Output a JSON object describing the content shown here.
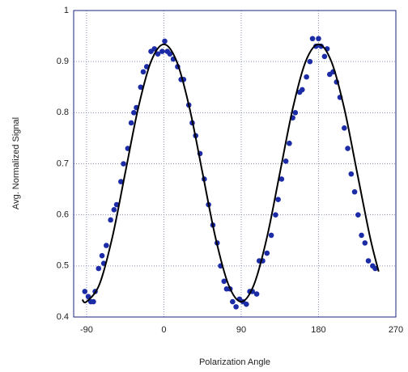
{
  "chart_data": {
    "type": "scatter",
    "x_label": "Polarization Angle",
    "y_label": "Avg. Normalized Signal",
    "xlim": [
      -105,
      270
    ],
    "xticks": [
      -90,
      0,
      90,
      180,
      270
    ],
    "ylim": [
      0.4,
      1
    ],
    "yticks": [
      0.4,
      0.5,
      0.6,
      0.7,
      0.8,
      0.9,
      1
    ],
    "grid": true,
    "series": [
      {
        "type": "scatter",
        "color": "#1c2ca6",
        "x": [
          -92,
          -88,
          -85,
          -82,
          -80,
          -76,
          -72,
          -70,
          -67,
          -62,
          -58,
          -55,
          -50,
          -47,
          -42,
          -38,
          -35,
          -32,
          -27,
          -24,
          -20,
          -15,
          -11,
          -7,
          -2,
          1,
          4,
          7,
          11,
          16,
          20,
          23,
          29,
          33,
          37,
          42,
          47,
          52,
          57,
          62,
          66,
          70,
          73,
          77,
          80,
          84,
          88,
          92,
          96,
          100,
          103,
          108,
          111,
          115,
          120,
          125,
          130,
          133,
          137,
          142,
          146,
          150,
          153,
          158,
          161,
          166,
          170,
          173,
          177,
          180,
          183,
          187,
          190,
          193,
          197,
          201,
          205,
          210,
          214,
          218,
          222,
          226,
          230,
          234,
          238,
          243,
          246
        ],
        "values": [
          0.45,
          0.44,
          0.43,
          0.43,
          0.45,
          0.495,
          0.52,
          0.505,
          0.54,
          0.59,
          0.61,
          0.62,
          0.665,
          0.7,
          0.73,
          0.78,
          0.8,
          0.81,
          0.85,
          0.88,
          0.89,
          0.92,
          0.925,
          0.915,
          0.92,
          0.94,
          0.92,
          0.915,
          0.905,
          0.89,
          0.865,
          0.865,
          0.815,
          0.78,
          0.755,
          0.72,
          0.67,
          0.62,
          0.58,
          0.545,
          0.5,
          0.47,
          0.455,
          0.455,
          0.43,
          0.42,
          0.435,
          0.43,
          0.425,
          0.45,
          0.45,
          0.445,
          0.51,
          0.51,
          0.525,
          0.56,
          0.6,
          0.63,
          0.67,
          0.705,
          0.74,
          0.79,
          0.8,
          0.84,
          0.845,
          0.87,
          0.9,
          0.945,
          0.93,
          0.945,
          0.93,
          0.91,
          0.925,
          0.875,
          0.88,
          0.86,
          0.83,
          0.77,
          0.73,
          0.68,
          0.645,
          0.6,
          0.56,
          0.545,
          0.51,
          0.5,
          0.495
        ]
      },
      {
        "type": "line",
        "color": "#000000",
        "x": [
          -95,
          -90,
          -75,
          -60,
          -45,
          -30,
          -15,
          0,
          15,
          30,
          45,
          60,
          75,
          90,
          105,
          120,
          135,
          150,
          165,
          180,
          195,
          210,
          225,
          240,
          250
        ],
        "values": [
          0.434,
          0.43,
          0.464,
          0.556,
          0.682,
          0.808,
          0.9,
          0.934,
          0.9,
          0.808,
          0.682,
          0.556,
          0.464,
          0.43,
          0.464,
          0.556,
          0.682,
          0.808,
          0.9,
          0.934,
          0.9,
          0.808,
          0.682,
          0.556,
          0.489
        ]
      }
    ]
  }
}
